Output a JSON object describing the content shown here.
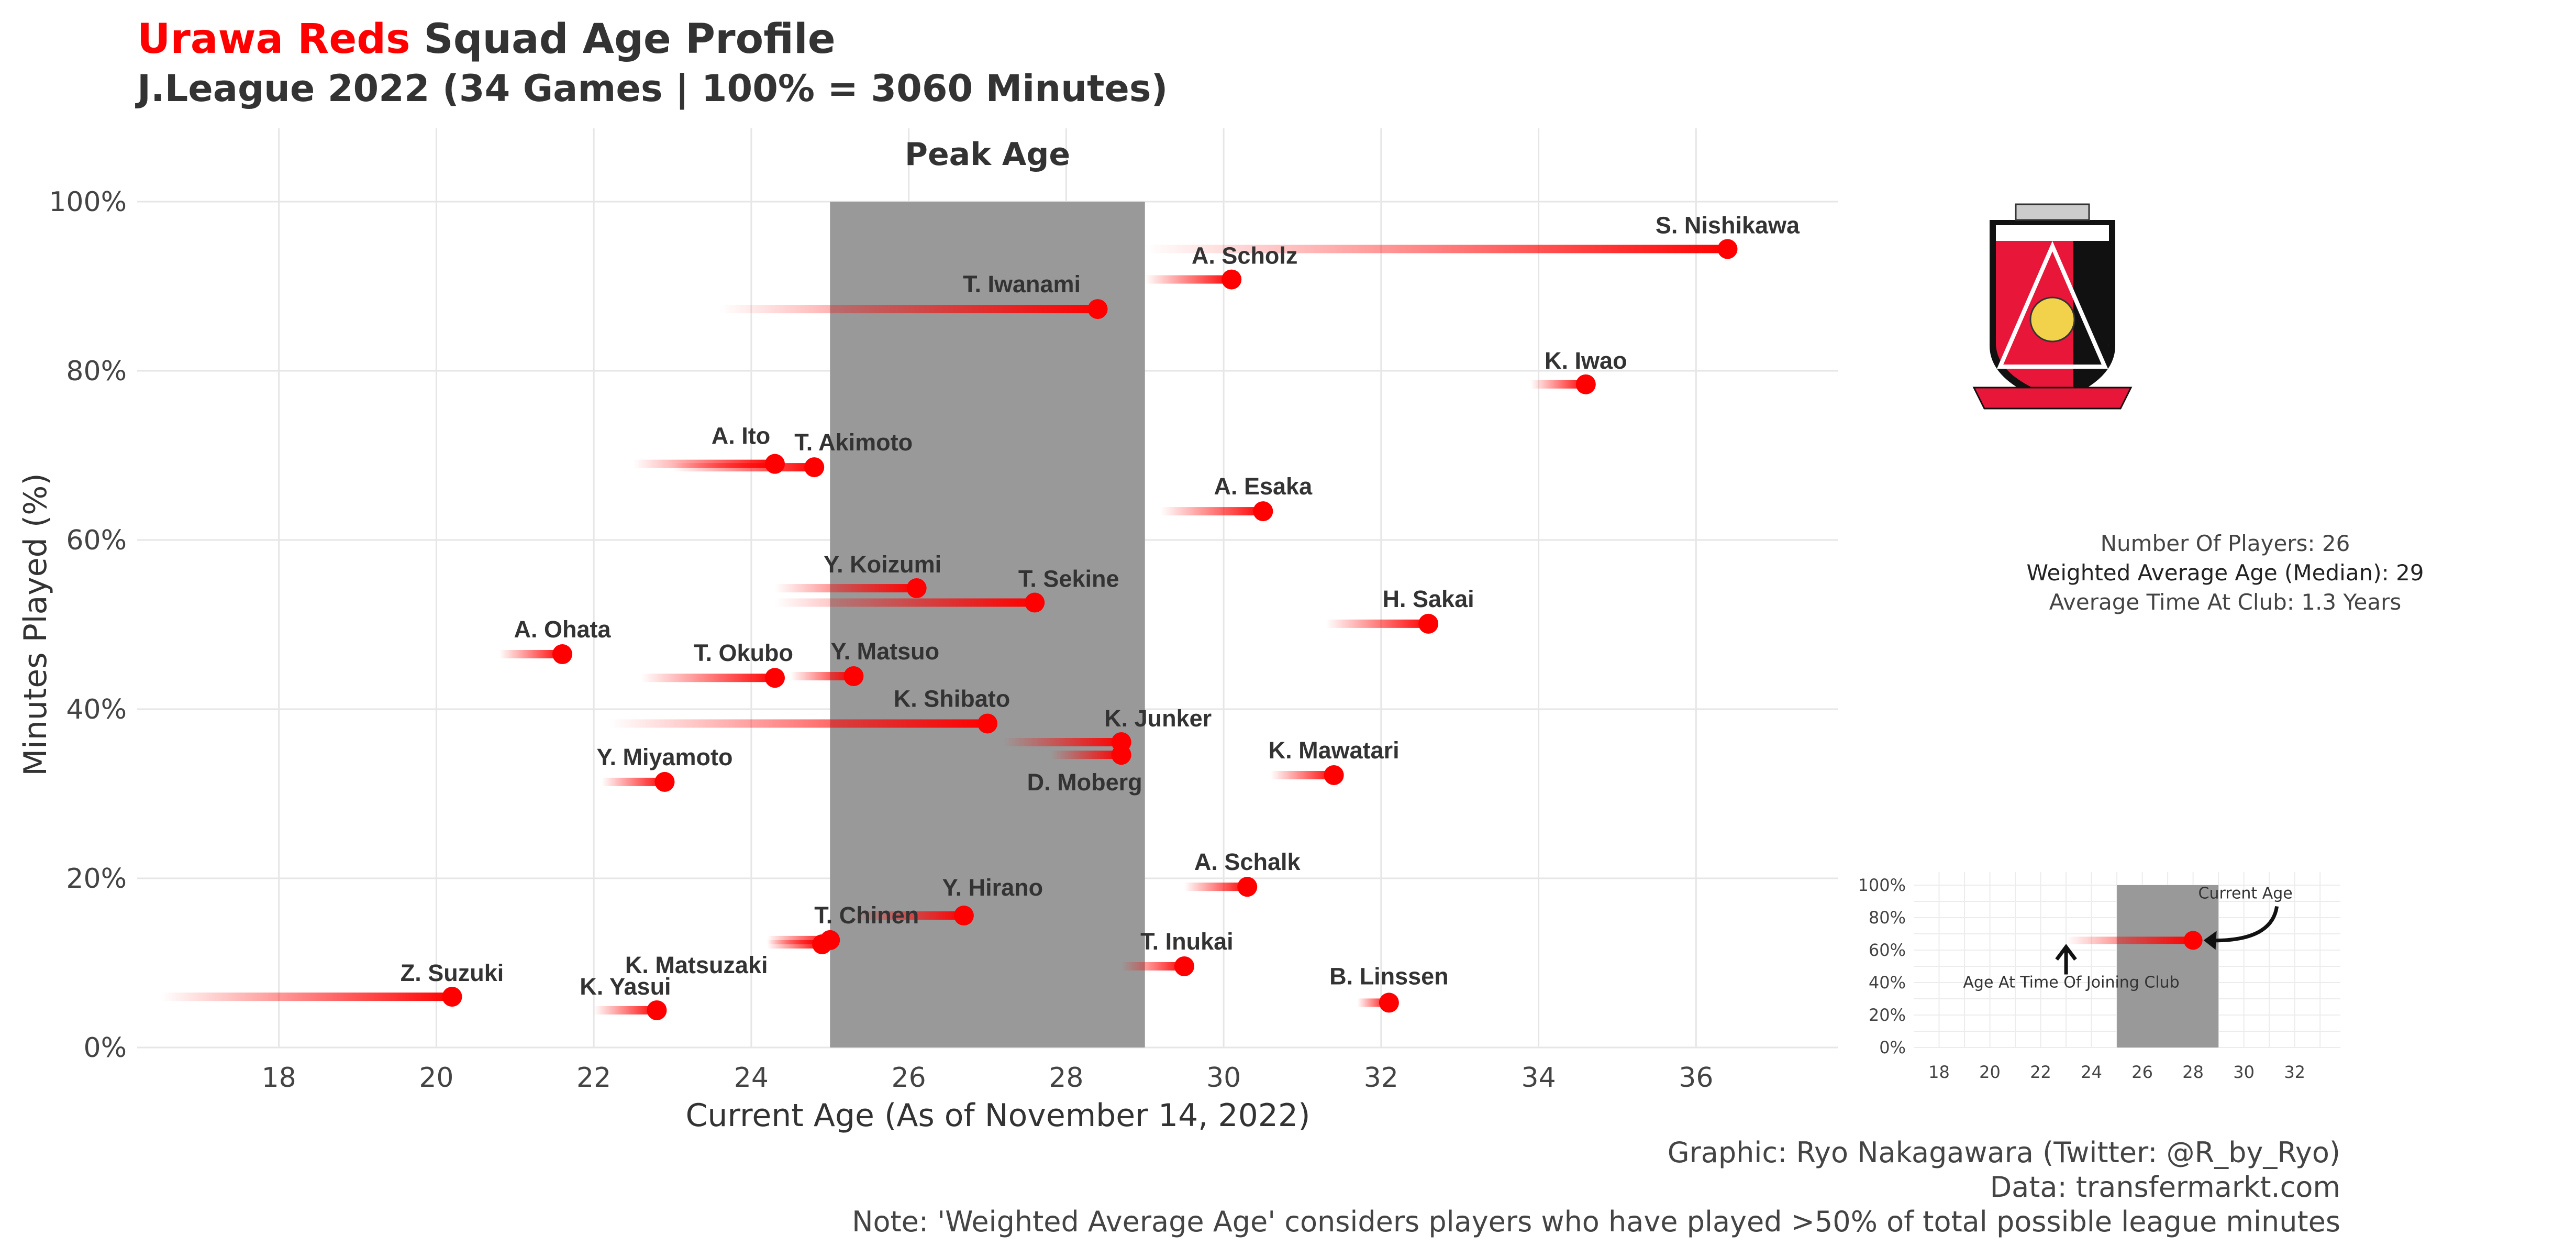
{
  "header": {
    "team": "Urawa Reds",
    "title": "Squad Age Profile",
    "subtitle": "J.League 2022 (34 Games | 100% = 3060 Minutes)"
  },
  "stats": {
    "players": "Number Of Players: 26",
    "weighted_age": "Weighted Average Age (Median): 29",
    "time_at_club": "Average Time At Club: 1.3 Years"
  },
  "caption": {
    "graphic": "Graphic: Ryo Nakagawara (Twitter: @R_by_Ryo)",
    "data": "Data: transfermarkt.com",
    "note": "Note: 'Weighted Average Age' considers players who have played >50% of total possible league minutes"
  },
  "colors": {
    "accent": "#ff0000",
    "peak_band": "#999999",
    "grid": "#e6e6e6",
    "text": "#333333"
  },
  "chart_data": [
    {
      "type": "scatter",
      "title": "",
      "xlabel": "Current Age (As of November 14, 2022)",
      "ylabel": "Minutes Played (%)",
      "xlim": [
        16.2,
        37.8
      ],
      "ylim": [
        0,
        100
      ],
      "x_ticks": [
        18,
        20,
        22,
        24,
        26,
        28,
        30,
        32,
        34,
        36
      ],
      "y_ticks": [
        "0%",
        "20%",
        "40%",
        "60%",
        "80%",
        "100%"
      ],
      "grid": true,
      "annotations": [
        {
          "text": "Peak Age",
          "band": [
            25,
            29
          ]
        }
      ],
      "players": [
        {
          "name": "S. Nishikawa",
          "age": 36.4,
          "joined_age": 29.0,
          "minutes_pct": 94.4
        },
        {
          "name": "A. Scholz",
          "age": 30.1,
          "joined_age": 29.0,
          "minutes_pct": 90.8
        },
        {
          "name": "T. Iwanami",
          "age": 28.4,
          "joined_age": 23.6,
          "minutes_pct": 87.3
        },
        {
          "name": "K. Iwao",
          "age": 34.6,
          "joined_age": 33.9,
          "minutes_pct": 78.4
        },
        {
          "name": "A. Ito",
          "age": 24.3,
          "joined_age": 22.5,
          "minutes_pct": 69.0
        },
        {
          "name": "T. Akimoto",
          "age": 24.8,
          "joined_age": 23.0,
          "minutes_pct": 68.6
        },
        {
          "name": "A. Esaka",
          "age": 30.5,
          "joined_age": 29.2,
          "minutes_pct": 63.4
        },
        {
          "name": "Y. Koizumi",
          "age": 26.1,
          "joined_age": 24.3,
          "minutes_pct": 54.3
        },
        {
          "name": "T. Sekine",
          "age": 27.6,
          "joined_age": 24.3,
          "minutes_pct": 52.6
        },
        {
          "name": "H. Sakai",
          "age": 32.6,
          "joined_age": 31.3,
          "minutes_pct": 50.1
        },
        {
          "name": "A. Ohata",
          "age": 21.6,
          "joined_age": 20.8,
          "minutes_pct": 46.5
        },
        {
          "name": "T. Okubo",
          "age": 24.3,
          "joined_age": 22.6,
          "minutes_pct": 43.7
        },
        {
          "name": "Y. Matsuo",
          "age": 25.3,
          "joined_age": 24.5,
          "minutes_pct": 43.9
        },
        {
          "name": "K. Shibato",
          "age": 27.0,
          "joined_age": 22.2,
          "minutes_pct": 38.3
        },
        {
          "name": "K. Junker",
          "age": 28.7,
          "joined_age": 27.2,
          "minutes_pct": 36.1
        },
        {
          "name": "D. Moberg",
          "age": 28.7,
          "joined_age": 27.8,
          "minutes_pct": 34.6
        },
        {
          "name": "K. Mawatari",
          "age": 31.4,
          "joined_age": 30.6,
          "minutes_pct": 32.2
        },
        {
          "name": "Y. Miyamoto",
          "age": 22.9,
          "joined_age": 22.1,
          "minutes_pct": 31.4
        },
        {
          "name": "A. Schalk",
          "age": 30.3,
          "joined_age": 29.5,
          "minutes_pct": 19.0
        },
        {
          "name": "Y. Hirano",
          "age": 26.7,
          "joined_age": 25.3,
          "minutes_pct": 15.6
        },
        {
          "name": "T. Chinen",
          "age": 25.0,
          "joined_age": 24.2,
          "minutes_pct": 12.7
        },
        {
          "name": "K. Matsuzaki",
          "age": 24.9,
          "joined_age": 24.2,
          "minutes_pct": 12.2
        },
        {
          "name": "T. Inukai",
          "age": 29.5,
          "joined_age": 28.7,
          "minutes_pct": 9.6
        },
        {
          "name": "Z. Suzuki",
          "age": 20.2,
          "joined_age": 16.5,
          "minutes_pct": 6.0
        },
        {
          "name": "K. Yasui",
          "age": 22.8,
          "joined_age": 22.0,
          "minutes_pct": 4.4
        },
        {
          "name": "B. Linssen",
          "age": 32.1,
          "joined_age": 31.7,
          "minutes_pct": 5.3
        }
      ]
    },
    {
      "type": "scatter",
      "title": "",
      "xlim": [
        17,
        33.8
      ],
      "ylim": [
        0,
        100
      ],
      "x_ticks": [
        18,
        20,
        22,
        24,
        26,
        28,
        30,
        32
      ],
      "y_ticks": [
        "0%",
        "20%",
        "40%",
        "60%",
        "80%",
        "100%"
      ],
      "band": [
        25,
        29
      ],
      "example": {
        "age": 28,
        "joined_age": 23,
        "minutes_pct": 66
      },
      "annotations": [
        "Current Age",
        "Age At Time Of Joining Club"
      ]
    }
  ]
}
